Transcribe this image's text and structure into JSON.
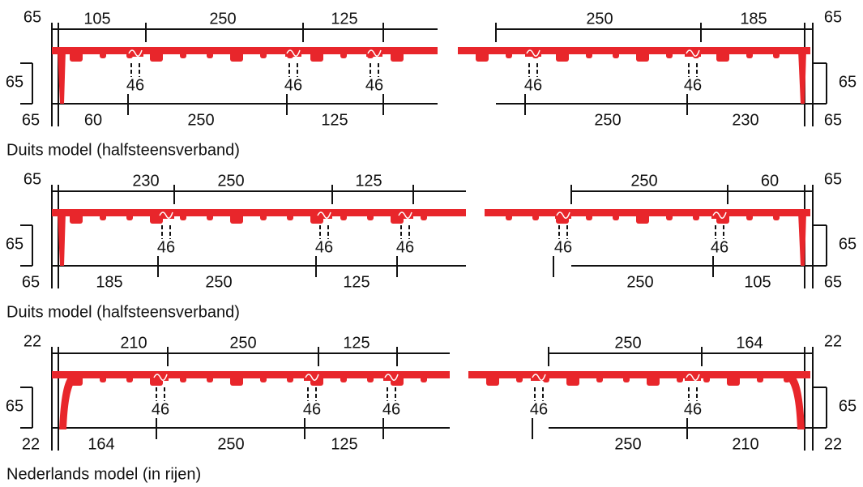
{
  "sections": [
    {
      "caption": "Duits model (halfsteensverband)",
      "left": {
        "top_end": "65",
        "top": [
          "105",
          "250",
          "125"
        ],
        "side": "65",
        "bottom_end": "65",
        "bottom": [
          "60",
          "250",
          "125"
        ],
        "joints": [
          "46",
          "46",
          "46"
        ]
      },
      "right": {
        "top": [
          "250",
          "185"
        ],
        "top_end": "65",
        "side": "65",
        "bottom": [
          "250",
          "230"
        ],
        "bottom_end": "65",
        "joints": [
          "46",
          "46"
        ]
      }
    },
    {
      "caption": "Duits model (halfsteensverband)",
      "left": {
        "top_end": "65",
        "top": [
          "230",
          "250",
          "125"
        ],
        "side": "65",
        "bottom_end": "65",
        "bottom": [
          "185",
          "250",
          "125"
        ],
        "joints": [
          "46",
          "46",
          "46"
        ]
      },
      "right": {
        "top": [
          "250",
          "60"
        ],
        "top_end": "65",
        "side": "65",
        "bottom": [
          "250",
          "105"
        ],
        "bottom_end": "65",
        "joints": [
          "46",
          "46"
        ]
      }
    },
    {
      "caption": "Nederlands model (in rijen)",
      "left": {
        "top_end": "22",
        "top": [
          "210",
          "250",
          "125"
        ],
        "side": "65",
        "bottom_end": "22",
        "bottom": [
          "164",
          "250",
          "125"
        ],
        "joints": [
          "46",
          "46",
          "46"
        ]
      },
      "right": {
        "top": [
          "250",
          "164"
        ],
        "top_end": "22",
        "side": "65",
        "bottom": [
          "250",
          "210"
        ],
        "bottom_end": "22",
        "joints": [
          "46",
          "46"
        ]
      }
    }
  ]
}
